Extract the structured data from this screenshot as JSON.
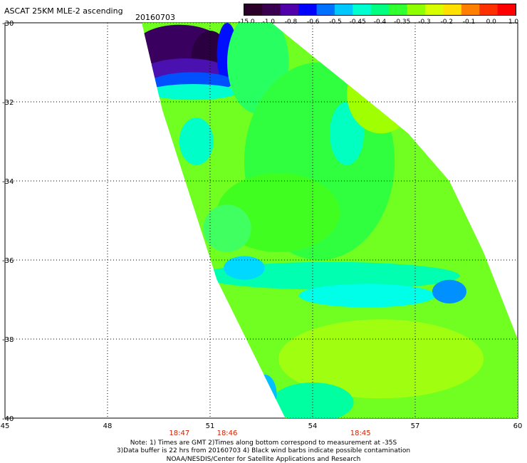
{
  "header": {
    "title": "ASCAT 25KM MLE-2 ascending",
    "date": "20160703"
  },
  "colorbar": {
    "labels": [
      "-15.0",
      "-1.0",
      "-0.8",
      "-0.6",
      "-0.5",
      "-0.45",
      "-0.4",
      "-0.35",
      "-0.3",
      "-0.2",
      "-0.1",
      "0.0",
      "1.0"
    ],
    "colors": [
      "#2a0028",
      "#3a0050",
      "#5000a8",
      "#0000ff",
      "#0070ff",
      "#00c8ff",
      "#00ffd0",
      "#00ff80",
      "#30ff30",
      "#90ff00",
      "#d8ff00",
      "#ffe000",
      "#ff8000",
      "#ff3000",
      "#ff0000"
    ]
  },
  "map": {
    "lon_ticks": [
      "45",
      "48",
      "51",
      "54",
      "57",
      "60"
    ],
    "lat_ticks": [
      "-30",
      "-32",
      "-34",
      "-36",
      "-38",
      "-40"
    ],
    "lon_range": [
      45,
      60
    ],
    "lat_range": [
      -30,
      -40
    ],
    "time_labels": [
      {
        "text": "18:47",
        "lon": 50.1
      },
      {
        "text": "18:46",
        "lon": 51.5
      },
      {
        "text": "18:45",
        "lon": 55.4
      }
    ]
  },
  "notes": {
    "line1": "Note: 1) Times are GMT 2)Times along bottom correspond to measurement at -35S",
    "line2": "3)Data buffer is 22 hrs from 20160703 4) Black wind barbs indicate possible contamination",
    "line3": "NOAA/NESDIS/Center for Satellite Applications and Research"
  }
}
